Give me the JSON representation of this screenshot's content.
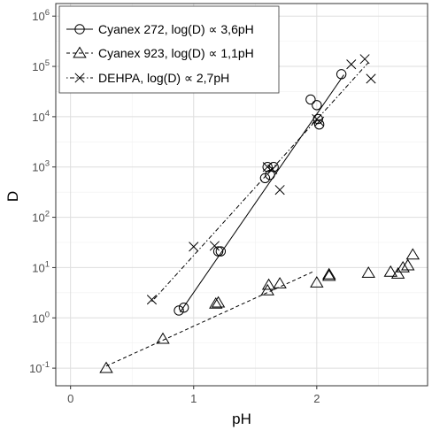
{
  "chart_data": {
    "type": "scatter",
    "title": "",
    "xlabel": "pH",
    "ylabel": "D",
    "xlim": [
      -0.12,
      2.9
    ],
    "ylim_log10": [
      -1.35,
      6.25
    ],
    "yscale": "log",
    "grid": true,
    "legend_position": "top-left",
    "x_ticks": [
      {
        "value": 0,
        "label": "0"
      },
      {
        "value": 1,
        "label": "1"
      },
      {
        "value": 2,
        "label": "2"
      }
    ],
    "y_ticks": [
      {
        "exp": -1,
        "base": "10",
        "sup": "-1"
      },
      {
        "exp": 0,
        "base": "10",
        "sup": "0"
      },
      {
        "exp": 1,
        "base": "10",
        "sup": "1"
      },
      {
        "exp": 2,
        "base": "10",
        "sup": "2"
      },
      {
        "exp": 3,
        "base": "10",
        "sup": "3"
      },
      {
        "exp": 4,
        "base": "10",
        "sup": "4"
      },
      {
        "exp": 5,
        "base": "10",
        "sup": "5"
      },
      {
        "exp": 6,
        "base": "10",
        "sup": "6"
      }
    ],
    "series": [
      {
        "name": "Cyanex 272, log(D) ∝ 3,6pH",
        "marker": "circle",
        "line_style": "solid",
        "x": [
          0.88,
          0.92,
          1.2,
          1.22,
          1.58,
          1.6,
          1.62,
          1.65,
          1.95,
          2.0,
          2.01,
          2.02,
          2.2
        ],
        "y": [
          1.4,
          1.6,
          21,
          21,
          600,
          1000,
          700,
          1000,
          22000,
          17000,
          9000,
          7000,
          70000
        ],
        "fit": {
          "x": [
            0.89,
            2.22
          ],
          "y": [
            1.3,
            68000
          ]
        }
      },
      {
        "name": "Cyanex 923, log(D) ∝ 1,1pH",
        "marker": "triangle",
        "line_style": "dashed",
        "x": [
          0.29,
          0.75,
          1.18,
          1.2,
          1.6,
          1.61,
          1.7,
          2.0,
          2.1,
          2.1,
          2.42,
          2.6,
          2.66,
          2.7,
          2.74,
          2.78
        ],
        "y": [
          0.1,
          0.38,
          1.9,
          2.0,
          3.5,
          4.5,
          4.8,
          5.0,
          6.8,
          7.3,
          7.8,
          8.2,
          7.5,
          10,
          11,
          18
        ],
        "fit": {
          "x": [
            0.29,
            1.98
          ],
          "y": [
            0.11,
            8.5
          ]
        }
      },
      {
        "name": "DEHPA, log(D) ∝ 2,7pH",
        "marker": "cross",
        "line_style": "dotdash",
        "x": [
          0.66,
          1.0,
          1.17,
          1.6,
          1.64,
          1.7,
          2.0,
          2.02,
          2.28,
          2.39,
          2.44
        ],
        "y": [
          2.3,
          26,
          27,
          1000,
          900,
          350,
          9000,
          8000,
          110000,
          140000,
          57000
        ],
        "fit": {
          "x": [
            0.66,
            2.42
          ],
          "y": [
            2.1,
            120000
          ]
        }
      }
    ]
  }
}
